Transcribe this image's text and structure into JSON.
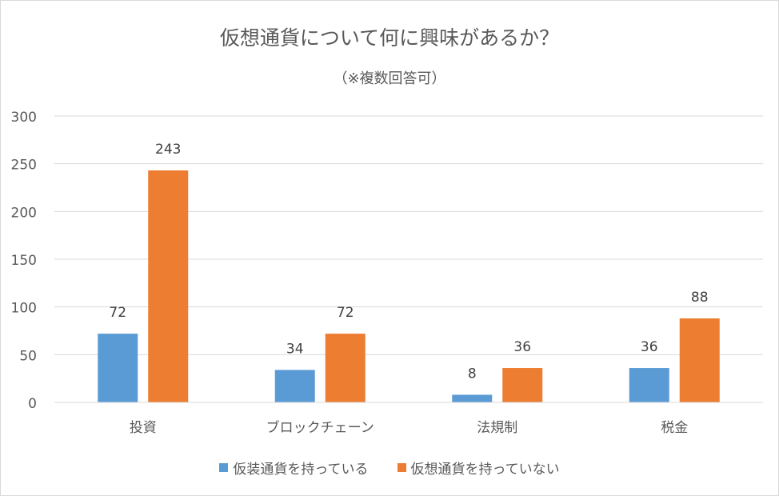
{
  "chart_data": {
    "type": "bar",
    "title": "仮想通貨について何に興味があるか？",
    "subtitle": "（※複数回答可）",
    "categories": [
      "投資",
      "ブロックチェーン",
      "法規制",
      "税金"
    ],
    "series": [
      {
        "name": "仮装通貨を持っている",
        "color": "#5b9bd5",
        "values": [
          72,
          34,
          8,
          36
        ]
      },
      {
        "name": "仮想通貨を持っていない",
        "color": "#ed7d31",
        "values": [
          243,
          72,
          36,
          88
        ]
      }
    ],
    "ylim": [
      0,
      300
    ],
    "yticks": [
      "0",
      "50",
      "100",
      "150",
      "200",
      "250",
      "300"
    ],
    "grid": true,
    "legend_position": "bottom"
  }
}
